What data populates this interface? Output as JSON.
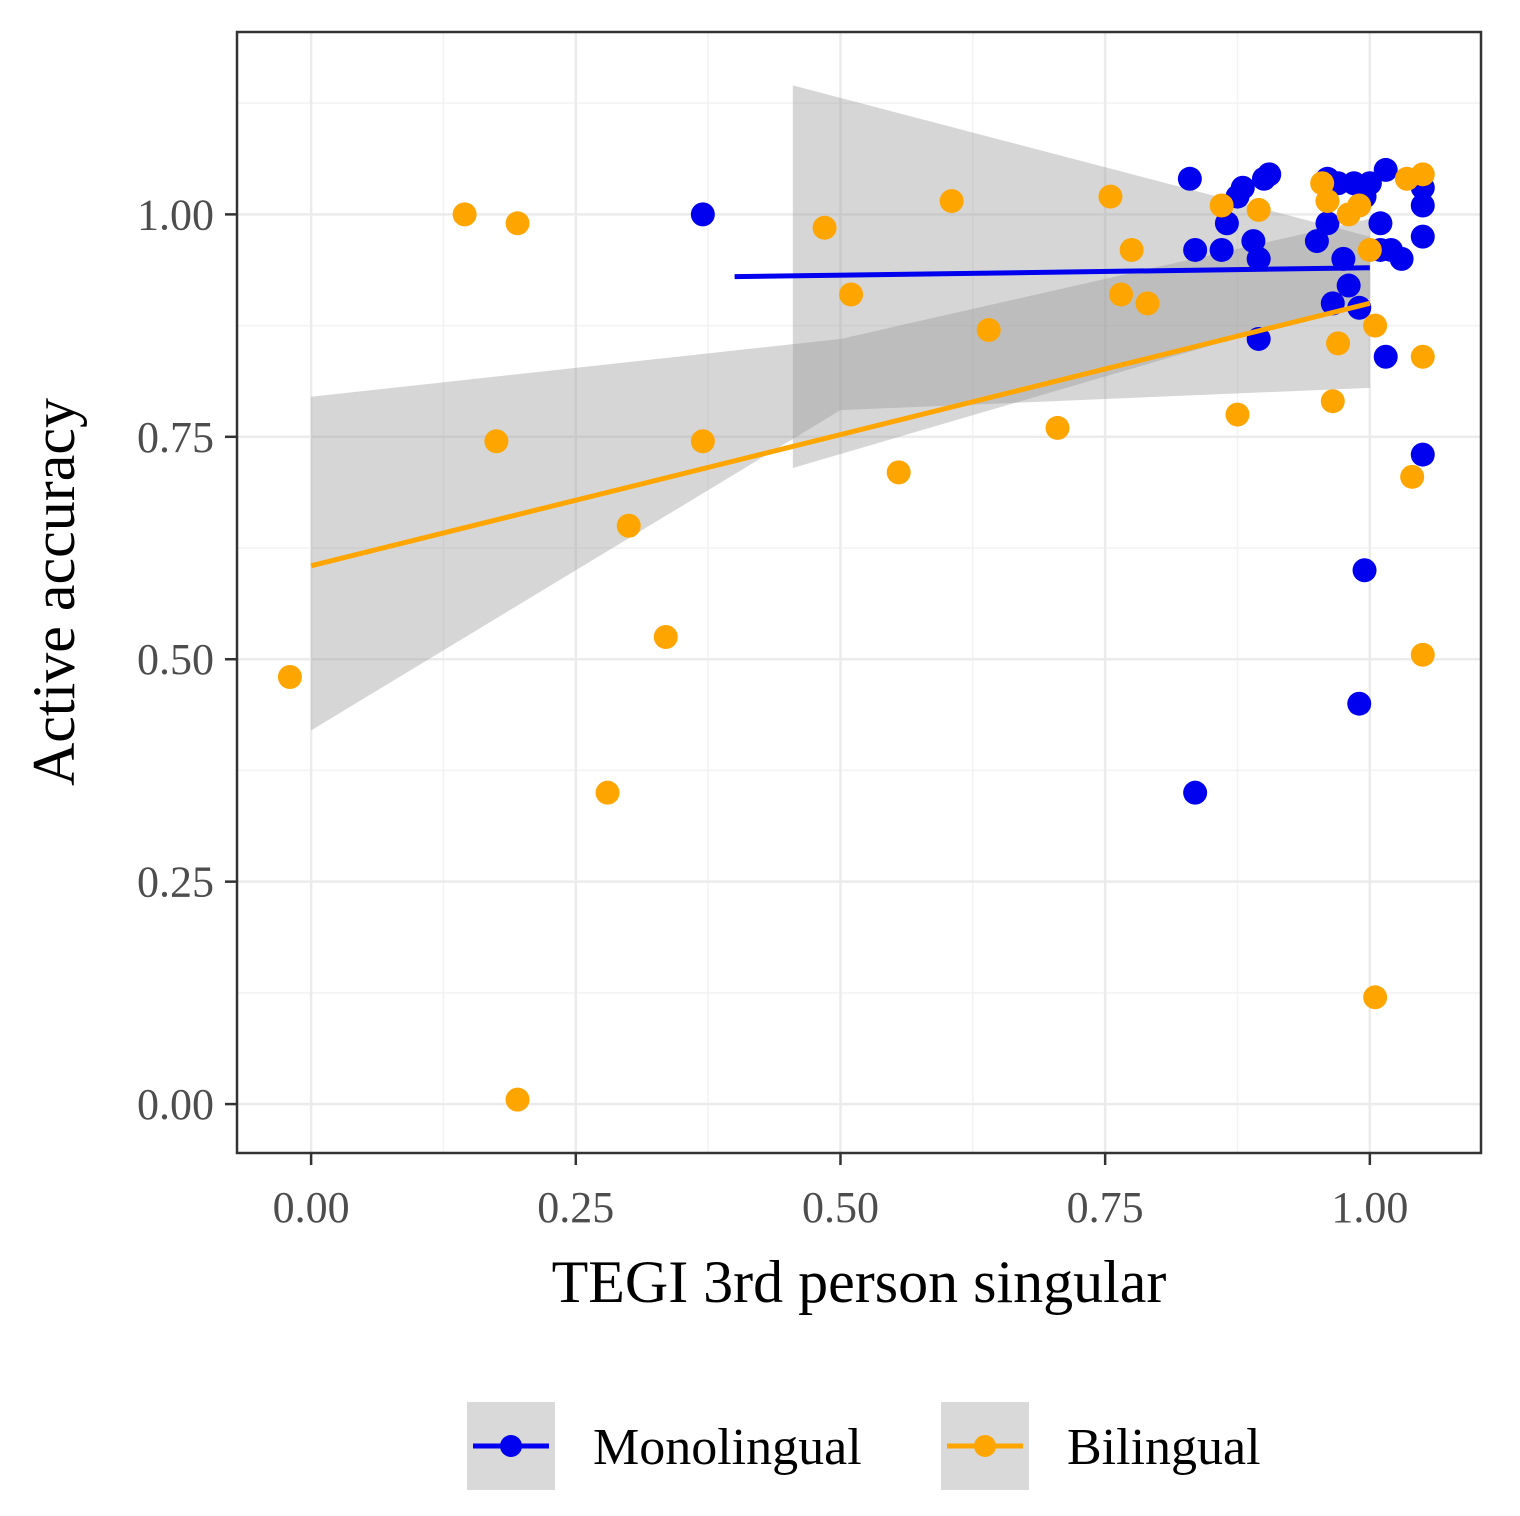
{
  "chart_data": {
    "type": "scatter",
    "xlabel": "TEGI 3rd person singular",
    "ylabel": "Active accuracy",
    "xlim": [
      -0.07,
      1.105
    ],
    "ylim": [
      -0.055,
      1.205
    ],
    "x_ticks": [
      0.0,
      0.25,
      0.5,
      0.75,
      1.0
    ],
    "x_tick_labels": [
      "0.00",
      "0.25",
      "0.50",
      "0.75",
      "1.00"
    ],
    "y_ticks": [
      0.0,
      0.25,
      0.5,
      0.75,
      1.0
    ],
    "y_tick_labels": [
      "0.00",
      "0.25",
      "0.50",
      "0.75",
      "1.00"
    ],
    "grid": true,
    "legend_position": "bottom",
    "series": [
      {
        "name": "Monolingual",
        "color": "#0000ee",
        "points": [
          [
            0.37,
            1.0
          ],
          [
            0.83,
            1.04
          ],
          [
            0.835,
            0.96
          ],
          [
            0.86,
            0.96
          ],
          [
            0.865,
            0.99
          ],
          [
            0.875,
            1.02
          ],
          [
            0.88,
            1.03
          ],
          [
            0.89,
            0.97
          ],
          [
            0.895,
            0.95
          ],
          [
            0.895,
            0.86
          ],
          [
            0.9,
            1.04
          ],
          [
            0.905,
            1.045
          ],
          [
            0.95,
            0.97
          ],
          [
            0.96,
            1.04
          ],
          [
            0.96,
            0.99
          ],
          [
            0.965,
            0.9
          ],
          [
            0.97,
            1.035
          ],
          [
            0.975,
            0.95
          ],
          [
            0.98,
            0.92
          ],
          [
            0.985,
            1.035
          ],
          [
            0.99,
            0.895
          ],
          [
            0.995,
            1.02
          ],
          [
            1.0,
            1.035
          ],
          [
            1.01,
            0.96
          ],
          [
            1.01,
            0.99
          ],
          [
            1.015,
            1.05
          ],
          [
            1.02,
            0.96
          ],
          [
            1.03,
            0.95
          ],
          [
            1.05,
            1.03
          ],
          [
            1.05,
            1.01
          ],
          [
            1.05,
            0.975
          ],
          [
            1.015,
            0.84
          ],
          [
            1.05,
            0.73
          ],
          [
            0.995,
            0.6
          ],
          [
            0.99,
            0.45
          ],
          [
            0.835,
            0.35
          ]
        ],
        "fit": {
          "x": [
            0.4,
            1.0
          ],
          "y": [
            0.93,
            0.94
          ]
        },
        "band": {
          "x": [
            0.455,
            1.0
          ],
          "lower": [
            0.715,
            0.905
          ],
          "upper": [
            1.145,
            0.975
          ]
        }
      },
      {
        "name": "Bilingual",
        "color": "#ffa500",
        "points": [
          [
            -0.02,
            0.48
          ],
          [
            0.145,
            1.0
          ],
          [
            0.175,
            0.745
          ],
          [
            0.195,
            0.99
          ],
          [
            0.195,
            0.005
          ],
          [
            0.28,
            0.35
          ],
          [
            0.3,
            0.65
          ],
          [
            0.335,
            0.525
          ],
          [
            0.37,
            0.745
          ],
          [
            0.485,
            0.985
          ],
          [
            0.51,
            0.91
          ],
          [
            0.555,
            0.71
          ],
          [
            0.605,
            1.015
          ],
          [
            0.64,
            0.87
          ],
          [
            0.705,
            0.76
          ],
          [
            0.755,
            1.02
          ],
          [
            0.765,
            0.91
          ],
          [
            0.775,
            0.96
          ],
          [
            0.79,
            0.9
          ],
          [
            0.86,
            1.01
          ],
          [
            0.875,
            0.775
          ],
          [
            0.895,
            1.005
          ],
          [
            0.955,
            1.035
          ],
          [
            0.96,
            1.015
          ],
          [
            0.965,
            0.79
          ],
          [
            0.97,
            0.855
          ],
          [
            0.98,
            1.0
          ],
          [
            0.99,
            1.01
          ],
          [
            1.0,
            0.96
          ],
          [
            1.005,
            0.875
          ],
          [
            1.005,
            0.12
          ],
          [
            1.035,
            1.04
          ],
          [
            1.04,
            0.705
          ],
          [
            1.05,
            1.045
          ],
          [
            1.05,
            0.84
          ],
          [
            1.05,
            0.505
          ]
        ],
        "fit": {
          "x": [
            0.0,
            1.0
          ],
          "y": [
            0.605,
            0.9
          ]
        },
        "band": {
          "x": [
            0.0,
            0.5,
            1.0
          ],
          "lower": [
            0.42,
            0.78,
            0.805
          ],
          "upper": [
            0.795,
            0.86,
            0.995
          ]
        }
      }
    ]
  }
}
